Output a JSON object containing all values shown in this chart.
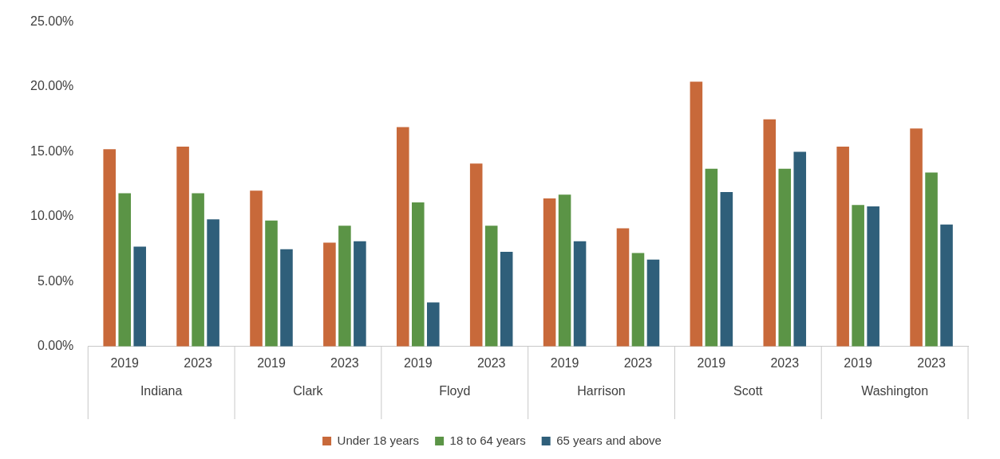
{
  "chart_data": {
    "type": "bar",
    "categories": [
      "2019",
      "2023",
      "2019",
      "2023",
      "2019",
      "2023",
      "2019",
      "2023",
      "2019",
      "2023",
      "2019",
      "2023"
    ],
    "annotations": [
      "Indiana",
      "Clark",
      "Floyd",
      "Harrison",
      "Scott",
      "Washington"
    ],
    "series": [
      {
        "name": "Under 18 years",
        "color": "#c8693a",
        "values": [
          15.2,
          15.4,
          12.0,
          8.0,
          16.9,
          14.1,
          11.4,
          9.1,
          20.4,
          17.5,
          15.4,
          16.8
        ]
      },
      {
        "name": "18 to 64 years",
        "color": "#5b9446",
        "values": [
          11.8,
          11.8,
          9.7,
          9.3,
          11.1,
          9.3,
          11.7,
          7.2,
          13.7,
          13.7,
          10.9,
          13.4
        ]
      },
      {
        "name": "65 years and above",
        "color": "#2f5f7a",
        "values": [
          7.7,
          9.8,
          7.5,
          8.1,
          3.4,
          7.3,
          8.1,
          6.7,
          11.9,
          15.0,
          10.8,
          9.4
        ]
      }
    ],
    "ylim": [
      0,
      25
    ],
    "yticks": [
      {
        "value": 0,
        "label": "0.00%"
      },
      {
        "value": 5,
        "label": "5.00%"
      },
      {
        "value": 10,
        "label": "10.00%"
      },
      {
        "value": 15,
        "label": "15.00%"
      },
      {
        "value": 20,
        "label": "20.00%"
      },
      {
        "value": 25,
        "label": "25.00%"
      }
    ],
    "grid": false,
    "legend": "bottom"
  }
}
